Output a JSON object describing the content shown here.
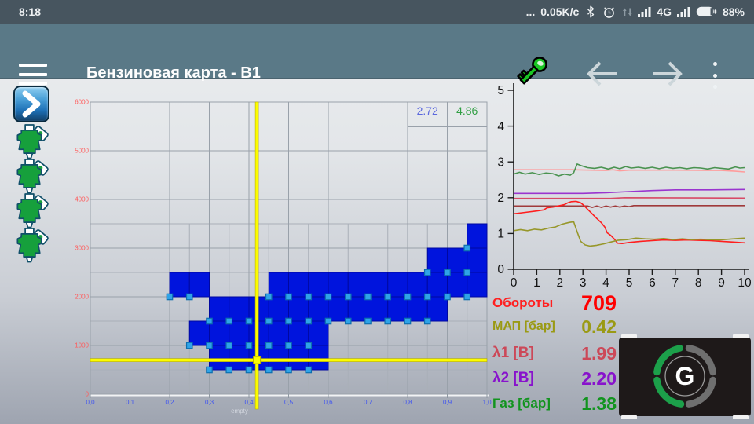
{
  "status_bar": {
    "time": "8:18",
    "ellipsis": "...",
    "net_speed": "0.05K/c",
    "network_type": "4G",
    "battery_percent": "88%"
  },
  "toolbar": {
    "title": "Бензиновая карта - B1"
  },
  "sidebar": {
    "injector_count": 4
  },
  "map_chart": {
    "x_labels": [
      "0,0",
      "0,1",
      "0,2",
      "0,3",
      "0,4",
      "0,5",
      "0,6",
      "0,7",
      "0,8",
      "0,9",
      "1,0"
    ],
    "y_labels": [
      "6000",
      "5000",
      "4000",
      "3000",
      "2000",
      "1000",
      "0"
    ],
    "empty_label": "empty",
    "correction_values": [
      {
        "value": "2.72",
        "color": "#5b68dd",
        "cell_x": 0.8
      },
      {
        "value": "4.86",
        "color": "#2f9e42",
        "cell_x": 0.9
      }
    ],
    "cursor": {
      "map": 0.42,
      "rpm": 700
    },
    "cell_rows": [
      {
        "rpm": 500,
        "cols": [
          0.3,
          0.35,
          0.4,
          0.45,
          0.5,
          0.55
        ]
      },
      {
        "rpm": 1000,
        "cols": [
          0.25,
          0.3,
          0.35,
          0.4,
          0.45,
          0.5,
          0.55
        ]
      },
      {
        "rpm": 1500,
        "cols": [
          0.3,
          0.35,
          0.4,
          0.45,
          0.5,
          0.55,
          0.6,
          0.65,
          0.7,
          0.75,
          0.8,
          0.85
        ]
      },
      {
        "rpm": 2000,
        "cols": [
          0.2,
          0.25,
          0.45,
          0.5,
          0.55,
          0.6,
          0.65,
          0.7,
          0.75,
          0.8,
          0.85,
          0.9,
          0.95
        ]
      },
      {
        "rpm": 2500,
        "cols": [
          0.85,
          0.9,
          0.95
        ]
      },
      {
        "rpm": 3000,
        "cols": [
          0.95
        ]
      }
    ],
    "marker_rows": [
      {
        "rpm": 500,
        "cols": [
          0.3,
          0.35,
          0.4,
          0.45,
          0.5,
          0.55
        ]
      },
      {
        "rpm": 1000,
        "cols": [
          0.25,
          0.3,
          0.35,
          0.4,
          0.45,
          0.5,
          0.55
        ]
      },
      {
        "rpm": 1500,
        "cols": [
          0.3,
          0.35,
          0.4,
          0.45,
          0.5,
          0.55,
          0.6,
          0.65,
          0.7,
          0.75,
          0.8,
          0.85
        ]
      },
      {
        "rpm": 2000,
        "cols": [
          0.2,
          0.25,
          0.45,
          0.5,
          0.55,
          0.6,
          0.65,
          0.7,
          0.75,
          0.8,
          0.85,
          0.9,
          0.95
        ]
      },
      {
        "rpm": 2500,
        "cols": [
          0.85,
          0.9,
          0.95
        ]
      },
      {
        "rpm": 3000,
        "cols": [
          0.95
        ]
      }
    ],
    "colors": {
      "cell": "#0014dd",
      "cell_border": "#0008a0",
      "marker": "#2fa3e8",
      "marker_border": "#0d6fae",
      "cursor": "#fcfc00",
      "cursor_border": "#b8b000",
      "x_label": "#3d52f2",
      "y_label": "#ff5a5a",
      "grid_major": "#99a1aa",
      "grid_minor": "#a9afb8"
    }
  },
  "line_chart": {
    "x_ticks": [
      "0",
      "1",
      "2",
      "3",
      "4",
      "5",
      "6",
      "7",
      "8",
      "9",
      "10"
    ],
    "y_ticks": [
      "0",
      "1",
      "2",
      "3",
      "4",
      "5"
    ],
    "x_range": [
      0,
      10
    ],
    "y_range": [
      0,
      5
    ],
    "series": [
      {
        "name": "salmon",
        "color": "#ff9c9c",
        "points": [
          [
            0,
            2.78
          ],
          [
            2.5,
            2.78
          ],
          [
            4.0,
            2.76
          ],
          [
            4.3,
            2.78
          ],
          [
            4.6,
            2.75
          ],
          [
            5,
            2.77
          ],
          [
            7,
            2.77
          ],
          [
            9,
            2.76
          ],
          [
            9.6,
            2.74
          ],
          [
            10,
            2.72
          ]
        ]
      },
      {
        "name": "green",
        "color": "#4a9350",
        "points": [
          [
            0,
            2.66
          ],
          [
            0.25,
            2.71
          ],
          [
            0.5,
            2.66
          ],
          [
            0.8,
            2.7
          ],
          [
            1.1,
            2.65
          ],
          [
            1.4,
            2.69
          ],
          [
            1.7,
            2.67
          ],
          [
            1.95,
            2.61
          ],
          [
            2.2,
            2.66
          ],
          [
            2.45,
            2.63
          ],
          [
            2.6,
            2.7
          ],
          [
            2.75,
            2.94
          ],
          [
            2.95,
            2.89
          ],
          [
            3.2,
            2.84
          ],
          [
            3.5,
            2.82
          ],
          [
            3.8,
            2.85
          ],
          [
            4.1,
            2.8
          ],
          [
            4.35,
            2.85
          ],
          [
            4.6,
            2.81
          ],
          [
            4.85,
            2.87
          ],
          [
            5.1,
            2.83
          ],
          [
            5.4,
            2.85
          ],
          [
            5.7,
            2.82
          ],
          [
            6,
            2.85
          ],
          [
            6.3,
            2.81
          ],
          [
            6.6,
            2.85
          ],
          [
            6.9,
            2.82
          ],
          [
            7.2,
            2.84
          ],
          [
            7.5,
            2.81
          ],
          [
            7.8,
            2.84
          ],
          [
            8.1,
            2.83
          ],
          [
            8.4,
            2.8
          ],
          [
            8.7,
            2.84
          ],
          [
            9,
            2.82
          ],
          [
            9.3,
            2.8
          ],
          [
            9.6,
            2.86
          ],
          [
            9.8,
            2.83
          ],
          [
            10,
            2.84
          ]
        ]
      },
      {
        "name": "purple",
        "color": "#9a35cf",
        "points": [
          [
            0,
            2.12
          ],
          [
            3.0,
            2.12
          ],
          [
            4.0,
            2.14
          ],
          [
            5.0,
            2.17
          ],
          [
            6.0,
            2.2
          ],
          [
            7.0,
            2.22
          ],
          [
            8.5,
            2.22
          ],
          [
            10,
            2.23
          ]
        ]
      },
      {
        "name": "rose",
        "color": "#d84a66",
        "points": [
          [
            0,
            1.98
          ],
          [
            4.2,
            1.98
          ],
          [
            4.8,
            2.0
          ],
          [
            10,
            1.99
          ]
        ]
      },
      {
        "name": "dark-red",
        "color": "#a03a3a",
        "points": [
          [
            0,
            1.77
          ],
          [
            3.2,
            1.77
          ],
          [
            3.4,
            1.73
          ],
          [
            3.6,
            1.77
          ],
          [
            3.8,
            1.73
          ],
          [
            4.0,
            1.77
          ],
          [
            4.2,
            1.74
          ],
          [
            4.4,
            1.77
          ],
          [
            4.6,
            1.74
          ],
          [
            4.8,
            1.77
          ],
          [
            5.0,
            1.75
          ],
          [
            5.2,
            1.78
          ],
          [
            10,
            1.78
          ]
        ]
      },
      {
        "name": "red",
        "color": "#ff1e1e",
        "points": [
          [
            0,
            1.55
          ],
          [
            0.5,
            1.59
          ],
          [
            1.0,
            1.63
          ],
          [
            1.3,
            1.66
          ],
          [
            1.45,
            1.72
          ],
          [
            1.7,
            1.74
          ],
          [
            2.0,
            1.78
          ],
          [
            2.2,
            1.81
          ],
          [
            2.35,
            1.86
          ],
          [
            2.5,
            1.89
          ],
          [
            2.7,
            1.9
          ],
          [
            2.9,
            1.86
          ],
          [
            3.05,
            1.78
          ],
          [
            3.2,
            1.68
          ],
          [
            3.4,
            1.55
          ],
          [
            3.6,
            1.42
          ],
          [
            3.8,
            1.3
          ],
          [
            3.95,
            1.18
          ],
          [
            4.05,
            1.02
          ],
          [
            4.2,
            0.95
          ],
          [
            4.35,
            0.85
          ],
          [
            4.5,
            0.73
          ],
          [
            4.7,
            0.72
          ],
          [
            5.0,
            0.75
          ],
          [
            5.5,
            0.78
          ],
          [
            6.0,
            0.8
          ],
          [
            6.5,
            0.82
          ],
          [
            7.0,
            0.81
          ],
          [
            7.5,
            0.82
          ],
          [
            8.0,
            0.81
          ],
          [
            8.5,
            0.8
          ],
          [
            9.0,
            0.78
          ],
          [
            9.5,
            0.76
          ],
          [
            10,
            0.74
          ]
        ]
      },
      {
        "name": "olive",
        "color": "#97972a",
        "points": [
          [
            0,
            1.08
          ],
          [
            0.3,
            1.11
          ],
          [
            0.6,
            1.08
          ],
          [
            0.9,
            1.12
          ],
          [
            1.2,
            1.1
          ],
          [
            1.5,
            1.15
          ],
          [
            1.8,
            1.18
          ],
          [
            2.1,
            1.26
          ],
          [
            2.4,
            1.31
          ],
          [
            2.6,
            1.33
          ],
          [
            2.75,
            1.05
          ],
          [
            2.9,
            0.78
          ],
          [
            3.1,
            0.68
          ],
          [
            3.3,
            0.65
          ],
          [
            3.6,
            0.67
          ],
          [
            3.9,
            0.71
          ],
          [
            4.2,
            0.76
          ],
          [
            4.5,
            0.81
          ],
          [
            4.9,
            0.83
          ],
          [
            5.3,
            0.87
          ],
          [
            5.7,
            0.85
          ],
          [
            6.1,
            0.84
          ],
          [
            6.5,
            0.86
          ],
          [
            6.9,
            0.83
          ],
          [
            7.3,
            0.85
          ],
          [
            7.7,
            0.83
          ],
          [
            8.1,
            0.84
          ],
          [
            8.5,
            0.83
          ],
          [
            8.9,
            0.82
          ],
          [
            9.3,
            0.84
          ],
          [
            9.7,
            0.86
          ],
          [
            10,
            0.87
          ]
        ]
      }
    ]
  },
  "readings": [
    {
      "label": "Обороты",
      "value": "709",
      "label_color": "#ff2020",
      "value_color": "#ff0000"
    },
    {
      "label": "МАП [бар]",
      "value": "0.42",
      "label_color": "#9a9a14",
      "value_color": "#9a9a14"
    },
    {
      "label": "λ1 [В]",
      "value": "1.99",
      "label_color": "#cc4858",
      "value_color": "#cc4858"
    },
    {
      "label": "λ2 [В]",
      "value": "2.20",
      "label_color": "#8812cc",
      "value_color": "#8812cc"
    },
    {
      "label": "Газ [бар]",
      "value": "1.38",
      "label_color": "#12941f",
      "value_color": "#12941f"
    }
  ],
  "logo": {
    "letter": "G",
    "green": "#1ca04a",
    "gray": "#6f6f6f"
  }
}
